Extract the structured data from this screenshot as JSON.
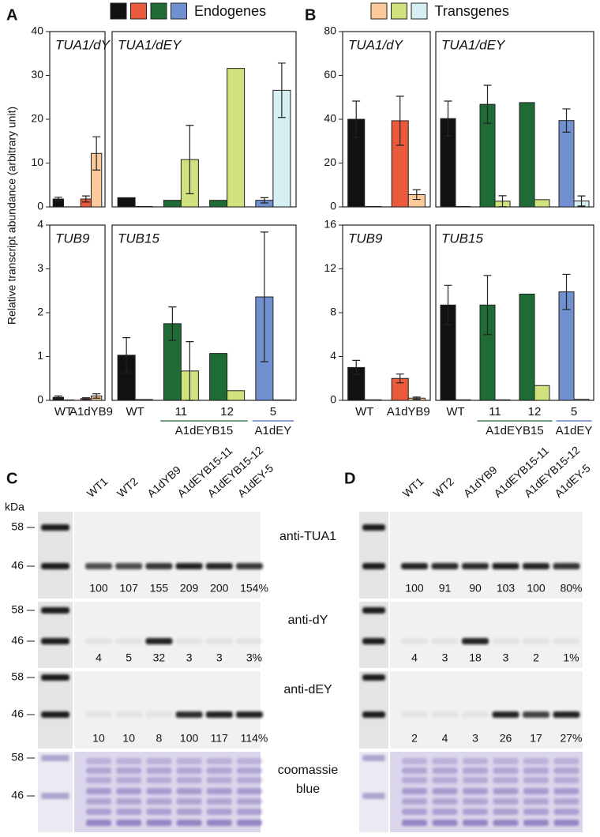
{
  "panels": [
    "A",
    "B"
  ],
  "legend": [
    {
      "label": "Endogenes",
      "colors": [
        "#111111",
        "#ea5a3c",
        "#1f6b35",
        "#7090cf"
      ]
    },
    {
      "label": "Transgenes",
      "colors": [
        "#fbc99a",
        "#cfe27e",
        "#d6eff3"
      ]
    }
  ],
  "y_axis_label": "Relative transcript abundance (arbitrary unit)",
  "chart_data": [
    {
      "type": "bar",
      "title": "TUA1/dY",
      "ylim": [
        0,
        40
      ],
      "yticks": [
        0,
        10,
        20,
        30,
        40
      ],
      "series": [
        {
          "colors": [
            "#111111",
            "#ea5a3c"
          ],
          "values": [
            1.8,
            1.8
          ],
          "errors": [
            0.4,
            0.7
          ]
        },
        {
          "colors": [
            "#fbc99a",
            "#fbc99a"
          ],
          "values": [
            0,
            12.2
          ],
          "errors": [
            null,
            3.8
          ]
        }
      ]
    },
    {
      "type": "bar",
      "title": "TUA1/dEY",
      "ylim": [
        0,
        40
      ],
      "series": [
        {
          "colors": [
            "#111111",
            "#1f6b35",
            "#1f6b35",
            "#7090cf"
          ],
          "values": [
            2.1,
            1.5,
            1.5,
            1.5
          ],
          "errors": [
            null,
            null,
            null,
            0.6
          ]
        },
        {
          "colors": [
            "#cfe27e",
            "#cfe27e",
            "#cfe27e",
            "#d6eff3"
          ],
          "values": [
            0.1,
            10.8,
            31.6,
            26.6
          ],
          "errors": [
            null,
            7.8,
            null,
            6.2
          ]
        }
      ]
    },
    {
      "type": "bar",
      "title": "TUB9",
      "ylim": [
        0,
        4
      ],
      "yticks": [
        0,
        1,
        2,
        3,
        4
      ],
      "categories": [
        "WT",
        "A1dYB9"
      ],
      "category_colors": [
        "#111111",
        "#e0502e"
      ],
      "series": [
        {
          "colors": [
            "#111111",
            "#ea5a3c"
          ],
          "values": [
            0.07,
            0.04
          ],
          "errors": [
            0.03,
            0.02
          ]
        },
        {
          "colors": [
            "#fbc99a",
            "#fbc99a"
          ],
          "values": [
            0.01,
            0.1
          ],
          "errors": [
            null,
            0.05
          ]
        }
      ]
    },
    {
      "type": "bar",
      "title": "TUB15",
      "ylim": [
        0,
        4
      ],
      "categories": [
        "WT",
        "11",
        "12",
        "5"
      ],
      "category_colors": [
        "#111111",
        "#1f6b35",
        "#1f6b35",
        "#4a66c0"
      ],
      "groups": [
        {
          "label": "A1dEYB15",
          "span": [
            1,
            2
          ],
          "color": "#1f6b35"
        },
        {
          "label": "A1dEY",
          "span": [
            3,
            3
          ],
          "color": "#4a66c0"
        }
      ],
      "series": [
        {
          "colors": [
            "#111111",
            "#1f6b35",
            "#1f6b35",
            "#7090cf"
          ],
          "values": [
            1.03,
            1.75,
            1.07,
            2.36
          ],
          "errors": [
            0.4,
            0.38,
            null,
            1.48
          ]
        },
        {
          "colors": [
            "#cfe27e",
            "#cfe27e",
            "#cfe27e",
            "#d6eff3"
          ],
          "values": [
            0.02,
            0.67,
            0.22,
            0.01
          ],
          "errors": [
            null,
            0.67,
            null,
            null
          ]
        }
      ]
    },
    {
      "type": "bar",
      "title": "TUA1/dY",
      "ylim": [
        0,
        80
      ],
      "yticks": [
        0,
        20,
        40,
        60,
        80
      ],
      "series": [
        {
          "colors": [
            "#111111",
            "#ea5a3c"
          ],
          "values": [
            40,
            39.3
          ],
          "errors": [
            8.3,
            11.2
          ]
        },
        {
          "colors": [
            "#fbc99a",
            "#fbc99a"
          ],
          "values": [
            0.2,
            5.6
          ],
          "errors": [
            null,
            2.2
          ]
        }
      ]
    },
    {
      "type": "bar",
      "title": "TUA1/dEY",
      "ylim": [
        0,
        80
      ],
      "series": [
        {
          "colors": [
            "#111111",
            "#1f6b35",
            "#1f6b35",
            "#7090cf"
          ],
          "values": [
            40.3,
            46.8,
            47.6,
            39.4
          ],
          "errors": [
            8,
            8.7,
            null,
            5.3
          ]
        },
        {
          "colors": [
            "#cfe27e",
            "#cfe27e",
            "#cfe27e",
            "#d6eff3"
          ],
          "values": [
            0.2,
            2.6,
            3.3,
            2.7
          ],
          "errors": [
            null,
            2.5,
            null,
            2.3
          ]
        }
      ]
    },
    {
      "type": "bar",
      "title": "TUB9",
      "ylim": [
        0,
        16
      ],
      "yticks": [
        0,
        4,
        8,
        12,
        16
      ],
      "categories": [
        "WT",
        "A1dYB9"
      ],
      "category_colors": [
        "#111111",
        "#e0502e"
      ],
      "series": [
        {
          "colors": [
            "#111111",
            "#ea5a3c"
          ],
          "values": [
            3.0,
            2.0
          ],
          "errors": [
            0.65,
            0.4
          ]
        },
        {
          "colors": [
            "#fbc99a",
            "#fbc99a"
          ],
          "values": [
            0.05,
            0.2
          ],
          "errors": [
            null,
            0.1
          ]
        }
      ]
    },
    {
      "type": "bar",
      "title": "TUB15",
      "ylim": [
        0,
        16
      ],
      "categories": [
        "WT",
        "11",
        "12",
        "5"
      ],
      "category_colors": [
        "#111111",
        "#1f6b35",
        "#1f6b35",
        "#4a66c0"
      ],
      "groups": [
        {
          "label": "A1dEYB15",
          "span": [
            1,
            2
          ],
          "color": "#1f6b35"
        },
        {
          "label": "A1dEY",
          "span": [
            3,
            3
          ],
          "color": "#4a66c0"
        }
      ],
      "series": [
        {
          "colors": [
            "#111111",
            "#1f6b35",
            "#1f6b35",
            "#7090cf"
          ],
          "values": [
            8.7,
            8.7,
            9.7,
            9.9
          ],
          "errors": [
            1.8,
            2.7,
            null,
            1.6
          ]
        },
        {
          "colors": [
            "#cfe27e",
            "#cfe27e",
            "#cfe27e",
            "#d6eff3"
          ],
          "values": [
            0.05,
            0.05,
            1.35,
            0.1
          ],
          "errors": [
            null,
            null,
            null,
            null
          ]
        }
      ]
    }
  ],
  "blots": [
    {
      "label": "C",
      "unit": "kDa",
      "markers": [
        "58",
        "46"
      ],
      "lanes": [
        "WT1",
        "WT2",
        "A1dYB9",
        "A1dEYB15-11",
        "A1dEYB15-12",
        "A1dEY-5"
      ],
      "rows": [
        {
          "antibody": "anti-TUA1",
          "quant": [
            "100",
            "107",
            "155",
            "209",
            "200",
            "154%"
          ]
        },
        {
          "antibody": "anti-dY",
          "quant": [
            "4",
            "5",
            "32",
            "3",
            "3",
            "3%"
          ]
        },
        {
          "antibody": "anti-dEY",
          "quant": [
            "10",
            "10",
            "8",
            "100",
            "117",
            "114%"
          ]
        },
        {
          "antibody": "coomassie blue"
        }
      ]
    },
    {
      "label": "D",
      "lanes": [
        "WT1",
        "WT2",
        "A1dYB9",
        "A1dEYB15-11",
        "A1dEYB15-12",
        "A1dEY-5"
      ],
      "rows": [
        {
          "quant": [
            "100",
            "91",
            "90",
            "103",
            "100",
            "80%"
          ]
        },
        {
          "quant": [
            "4",
            "3",
            "18",
            "3",
            "2",
            "1%"
          ]
        },
        {
          "quant": [
            "2",
            "4",
            "3",
            "26",
            "17",
            "27%"
          ]
        }
      ]
    }
  ]
}
